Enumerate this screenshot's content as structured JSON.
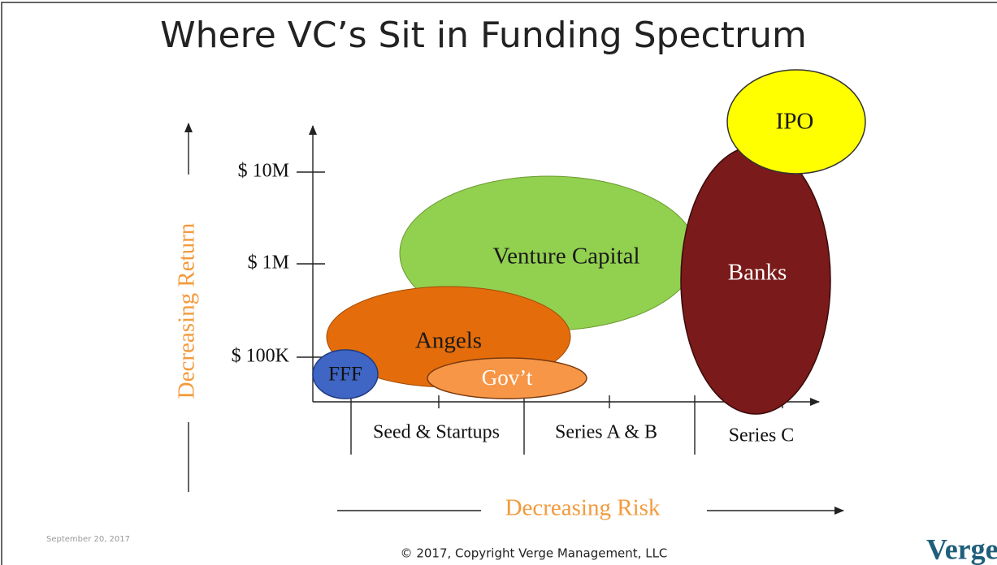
{
  "title": "Where VC’s Sit in Funding Spectrum",
  "y_axis": {
    "label": "Decreasing Return",
    "ticks": [
      "$ 10M",
      "$ 1M",
      "$ 100K"
    ]
  },
  "x_axis": {
    "label": "Decreasing Risk",
    "categories": [
      "Seed & Startups",
      "Series A & B",
      "Series C"
    ]
  },
  "regions": [
    {
      "label": "Venture Capital"
    },
    {
      "label": "Angels"
    },
    {
      "label": "Gov’t"
    },
    {
      "label": "FFF"
    },
    {
      "label": "Banks"
    },
    {
      "label": "IPO"
    }
  ],
  "footer": {
    "date": "September 20, 2017",
    "copyright": "© 2017, Copyright Verge Management, LLC",
    "logo": "Verge"
  }
}
